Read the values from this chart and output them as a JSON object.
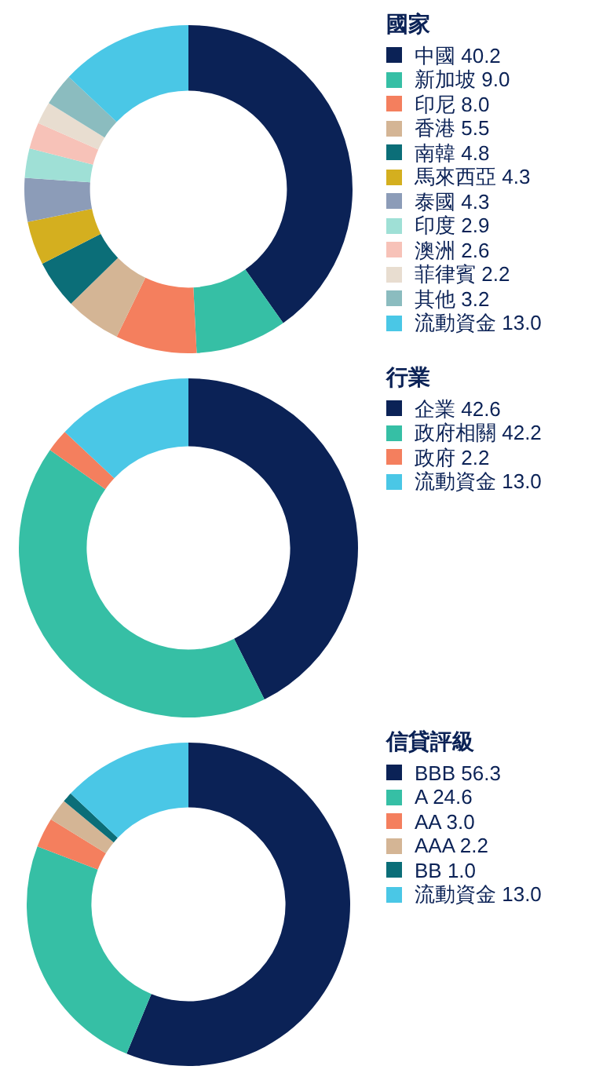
{
  "chart_data": [
    {
      "type": "donut",
      "legend_title": "國家",
      "legend": "right",
      "categories": [
        "中國",
        "新加坡",
        "印尼",
        "香港",
        "南韓",
        "馬來西亞",
        "泰國",
        "印度",
        "澳洲",
        "菲律賓",
        "其他",
        "流動資金"
      ],
      "values": [
        40.2,
        9.0,
        8.0,
        5.5,
        4.8,
        4.3,
        4.3,
        2.9,
        2.6,
        2.2,
        3.2,
        13.0
      ],
      "value_labels": [
        "40.2",
        "9.0",
        "8.0",
        "5.5",
        "4.8",
        "4.3",
        "4.3",
        "2.9",
        "2.6",
        "2.2",
        "3.2",
        "13.0"
      ],
      "colors": [
        "#0b2256",
        "#36bfa5",
        "#f47f5e",
        "#d4b595",
        "#0b6e78",
        "#d4af1f",
        "#8c9cb8",
        "#9fe0d6",
        "#f7c2b8",
        "#e8ddd0",
        "#8bbcbf",
        "#4ac7e6"
      ]
    },
    {
      "type": "donut",
      "legend_title": "行業",
      "legend": "right",
      "categories": [
        "企業",
        "政府相關",
        "政府",
        "流動資金"
      ],
      "values": [
        42.6,
        42.2,
        2.2,
        13.0
      ],
      "value_labels": [
        "42.6",
        "42.2",
        "2.2",
        "13.0"
      ],
      "colors": [
        "#0b2256",
        "#36bfa5",
        "#f47f5e",
        "#4ac7e6"
      ]
    },
    {
      "type": "donut",
      "legend_title": "信貸評級",
      "legend": "right",
      "categories": [
        "BBB",
        "A",
        "AA",
        "AAA",
        "BB",
        "流動資金"
      ],
      "values": [
        56.3,
        24.6,
        3.0,
        2.2,
        1.0,
        13.0
      ],
      "value_labels": [
        "56.3",
        "24.6",
        "3.0",
        "2.2",
        "1.0",
        "13.0"
      ],
      "colors": [
        "#0b2256",
        "#36bfa5",
        "#f47f5e",
        "#d4b595",
        "#0b6e78",
        "#4ac7e6"
      ]
    }
  ]
}
